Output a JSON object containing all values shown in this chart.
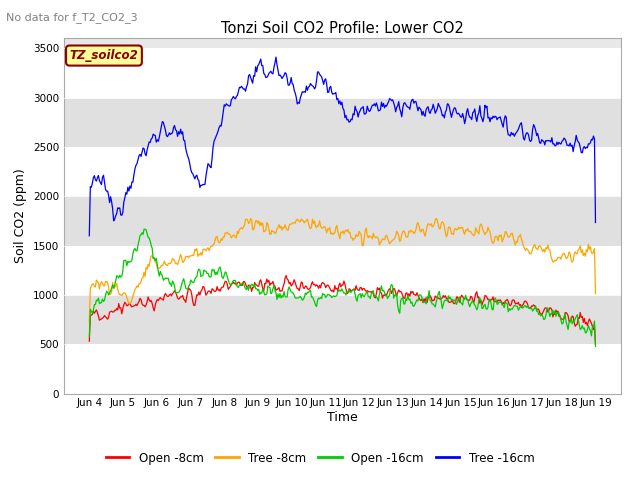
{
  "title": "Tonzi Soil CO2 Profile: Lower CO2",
  "subtitle": "No data for f_T2_CO2_3",
  "ylabel": "Soil CO2 (ppm)",
  "xlabel": "Time",
  "ylim": [
    0,
    3600
  ],
  "yticks": [
    0,
    500,
    1000,
    1500,
    2000,
    2500,
    3000,
    3500
  ],
  "legend_labels": [
    "Open -8cm",
    "Tree -8cm",
    "Open -16cm",
    "Tree -16cm"
  ],
  "legend_colors": [
    "#ff0000",
    "#ffaa00",
    "#00cc00",
    "#0000ff"
  ],
  "box_label": "TZ_soilco2",
  "box_text_color": "#8b0000",
  "box_bg": "#ffff99",
  "box_edge_color": "#8b0000",
  "num_points": 500,
  "band_colors": [
    "#ffffff",
    "#e0e0e0"
  ],
  "plot_bg": "#e8e8e8",
  "fig_bg": "#ffffff",
  "subtitle_color": "#808080",
  "num_days": 15,
  "start_day": 4,
  "start_month": "Jun"
}
